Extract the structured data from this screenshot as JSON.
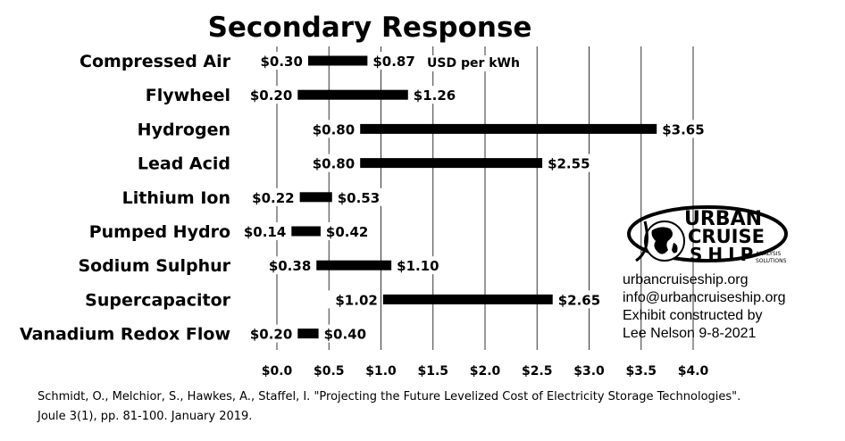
{
  "chart_data": {
    "type": "bar",
    "orientation": "horizontal-range",
    "title": "Secondary Response",
    "unit_label": "USD per kWh",
    "categories": [
      "Compressed Air",
      "Flywheel",
      "Hydrogen",
      "Lead Acid",
      "Lithium Ion",
      "Pumped Hydro",
      "Sodium Sulphur",
      "Supercapacitor",
      "Vanadium Redox Flow"
    ],
    "series": [
      {
        "low": [
          0.3,
          0.2,
          0.8,
          0.8,
          0.22,
          0.14,
          0.38,
          1.02,
          0.2
        ],
        "high": [
          0.87,
          1.26,
          3.65,
          2.55,
          0.53,
          0.42,
          1.1,
          2.65,
          0.4
        ]
      }
    ],
    "low_labels": [
      "$0.30",
      "$0.20",
      "$0.80",
      "$0.80",
      "$0.22",
      "$0.14",
      "$0.38",
      "$1.02",
      "$0.20"
    ],
    "high_labels": [
      "$0.87",
      "$1.26",
      "$3.65",
      "$2.55",
      "$0.53",
      "$0.42",
      "$1.10",
      "$2.65",
      "$0.40"
    ],
    "xlim": [
      0,
      4
    ],
    "x_ticks": [
      0,
      0.5,
      1,
      1.5,
      2,
      2.5,
      3,
      3.5,
      4
    ],
    "x_tick_labels": [
      "$0.0",
      "$0.5",
      "$1.0",
      "$1.5",
      "$2.0",
      "$2.5",
      "$3.0",
      "$3.5",
      "$4.0"
    ],
    "grid": true,
    "colors": {
      "bar": "#000000",
      "grid": "#333333"
    }
  },
  "logo": {
    "line1": "URBAN",
    "line2": "CRUISE",
    "line3": "SHIP",
    "tagline1": "ANALYSIS",
    "tagline2": "SOLUTIONS",
    "icon": "globe-icon"
  },
  "info": {
    "website": "urbancruiseship.org",
    "email": "info@urbancruiseship.org",
    "credit1": "Exhibit constructed by",
    "credit2": "Lee Nelson 9-8-2021"
  },
  "citation": {
    "line1": "Schmidt, O., Melchior, S., Hawkes, A., Staffel, I. \"Projecting the Future Levelized Cost of Electricity Storage Technologies\".",
    "line2": "Joule 3(1), pp. 81-100. January 2019."
  }
}
